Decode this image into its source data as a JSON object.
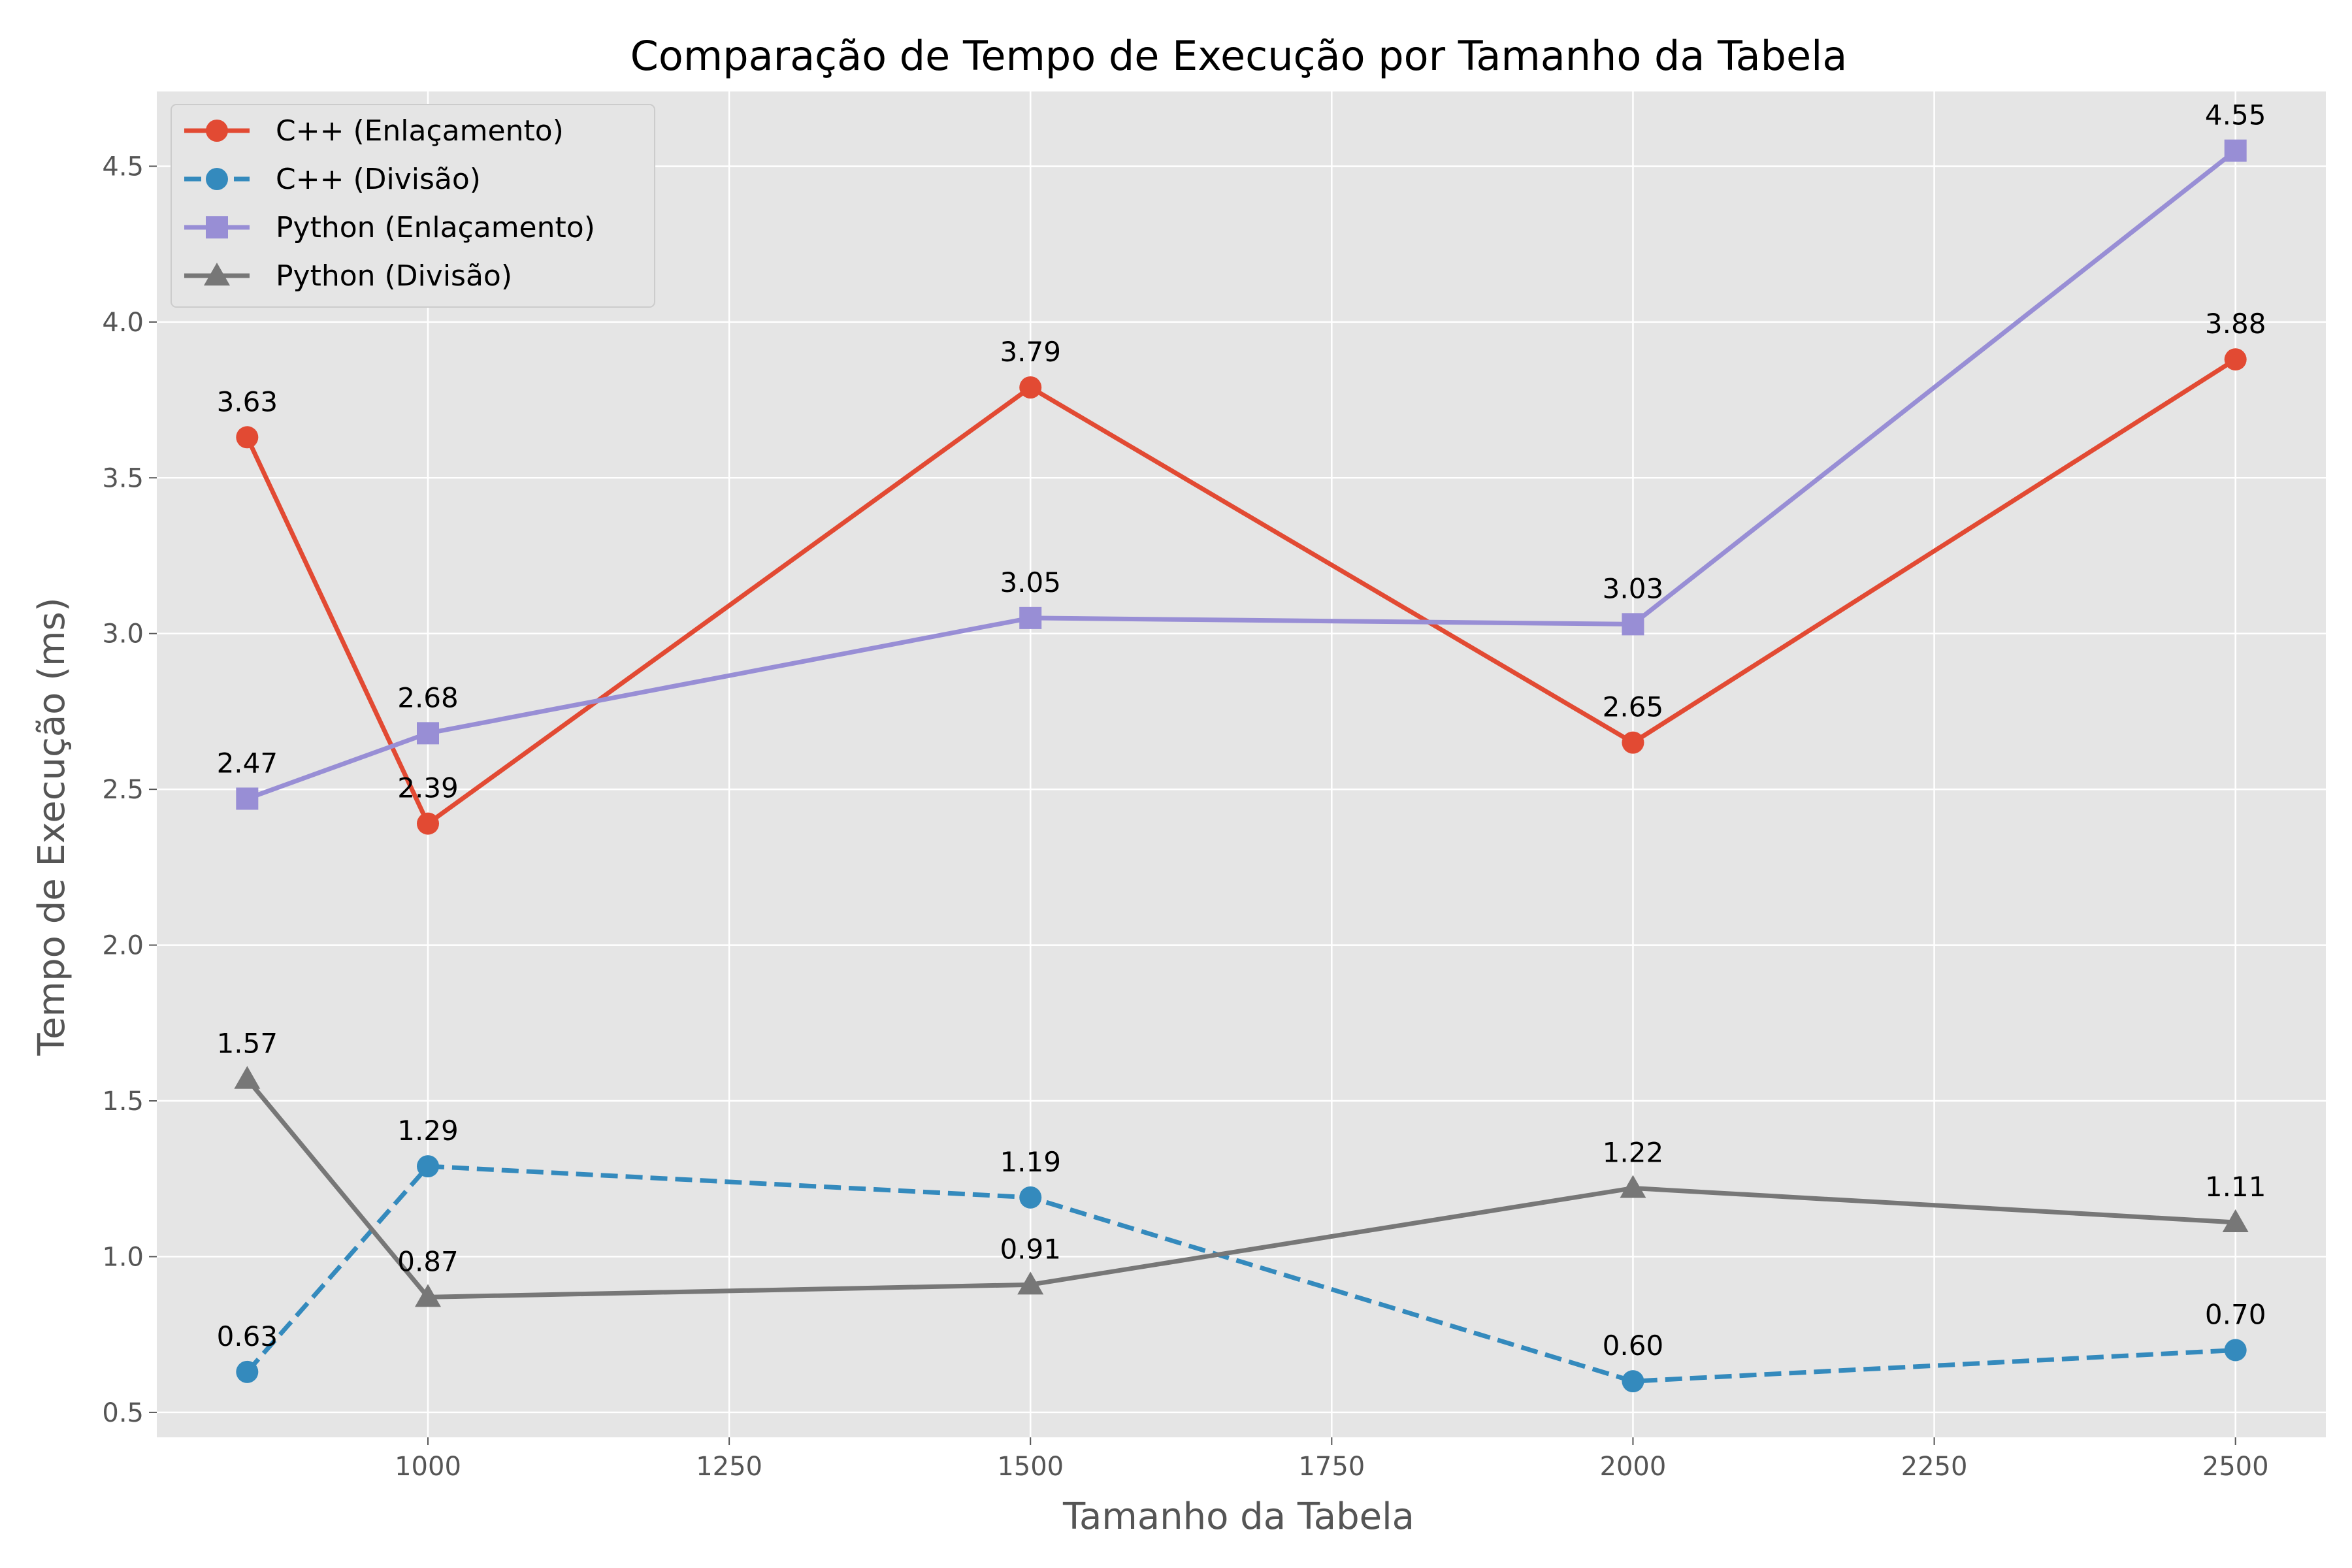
{
  "chart_data": {
    "type": "line",
    "title": "Comparação de Tempo de Execução por Tamanho da Tabela",
    "xlabel": "Tamanho da Tabela",
    "ylabel": "Tempo de Execução (ms)",
    "x": [
      850,
      1000,
      1500,
      2000,
      2500
    ],
    "xlim": [
      775,
      2575
    ],
    "ylim": [
      0.42,
      4.74
    ],
    "xticks": [
      1000,
      1250,
      1500,
      1750,
      2000,
      2250,
      2500
    ],
    "xtick_labels": [
      "1000",
      "1250",
      "1500",
      "1750",
      "2000",
      "2250",
      "2500"
    ],
    "yticks": [
      0.5,
      1.0,
      1.5,
      2.0,
      2.5,
      3.0,
      3.5,
      4.0,
      4.5
    ],
    "ytick_labels": [
      "0.5",
      "1.0",
      "1.5",
      "2.0",
      "2.5",
      "3.0",
      "3.5",
      "4.0",
      "4.5"
    ],
    "grid": true,
    "legend_position": "top-left",
    "series": [
      {
        "name": "C++ (Enlaçamento)",
        "values": [
          3.63,
          2.39,
          3.79,
          2.65,
          3.88
        ],
        "labels": [
          "3.63",
          "2.39",
          "3.79",
          "2.65",
          "3.88"
        ],
        "color": "#E24A33",
        "marker": "circle",
        "dash": "solid"
      },
      {
        "name": "C++ (Divisão)",
        "values": [
          0.63,
          1.29,
          1.19,
          0.6,
          0.7
        ],
        "labels": [
          "0.63",
          "1.29",
          "1.19",
          "0.60",
          "0.70"
        ],
        "color": "#348ABD",
        "marker": "circle",
        "dash": "dashed"
      },
      {
        "name": "Python (Enlaçamento)",
        "values": [
          2.47,
          2.68,
          3.05,
          3.03,
          4.55
        ],
        "labels": [
          "2.47",
          "2.68",
          "3.05",
          "3.03",
          "4.55"
        ],
        "color": "#988ED5",
        "marker": "square",
        "dash": "solid"
      },
      {
        "name": "Python (Divisão)",
        "values": [
          1.57,
          0.87,
          0.91,
          1.22,
          1.11
        ],
        "labels": [
          "1.57",
          "0.87",
          "0.91",
          "1.22",
          "1.11"
        ],
        "color": "#777777",
        "marker": "triangle",
        "dash": "solid"
      }
    ]
  }
}
